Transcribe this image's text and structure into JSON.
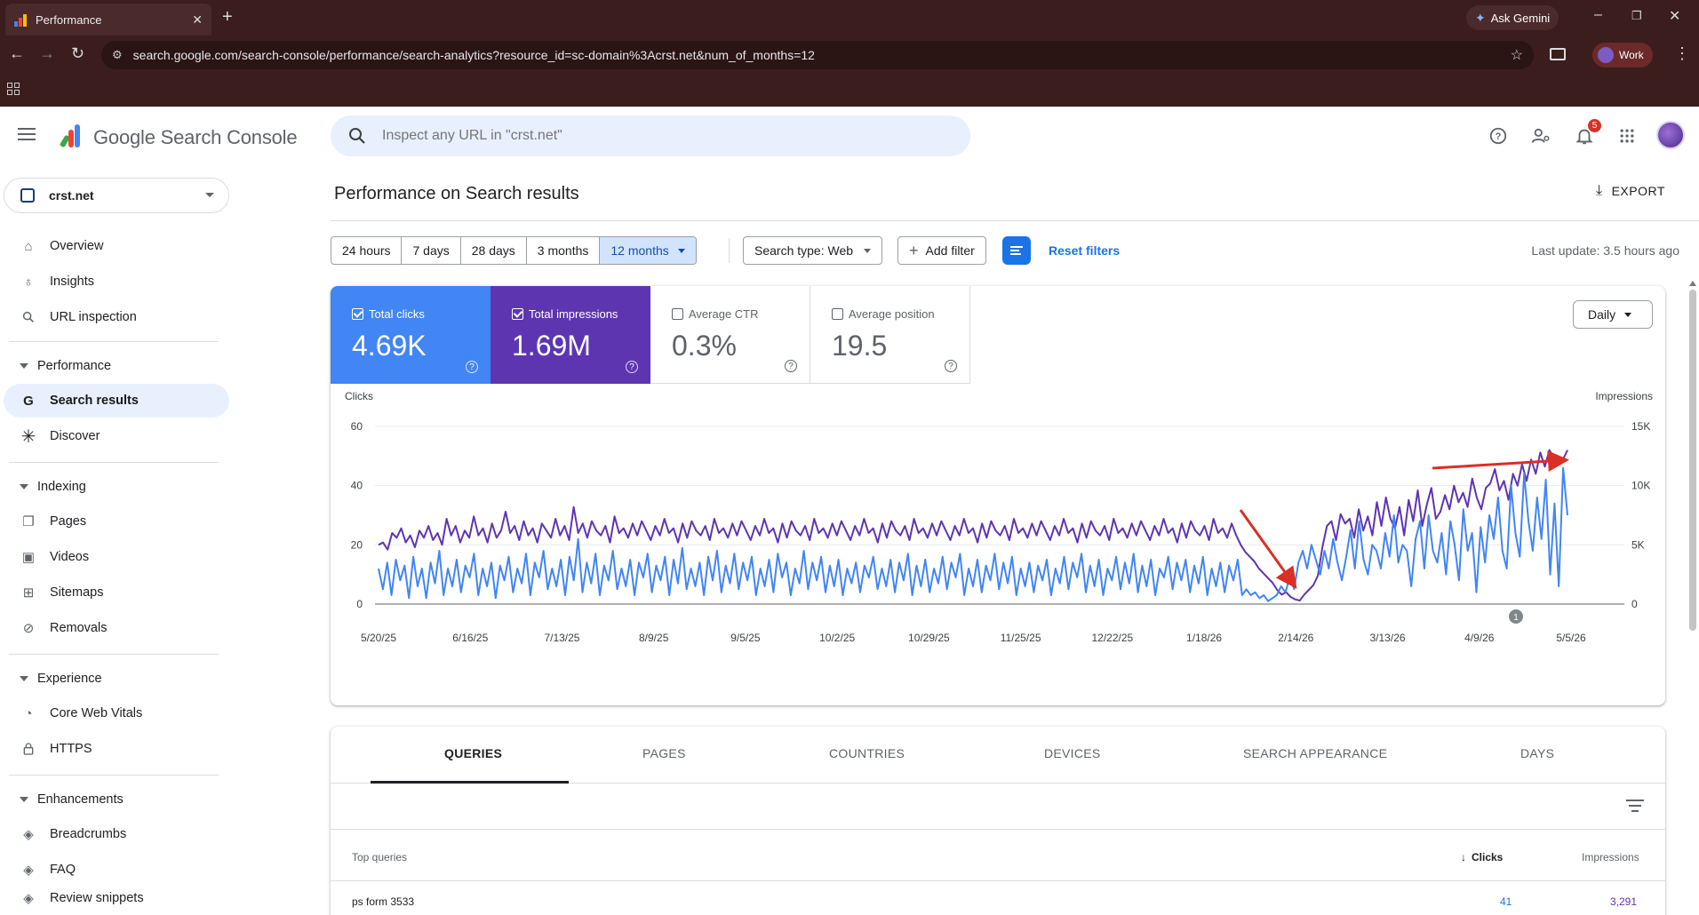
{
  "browser": {
    "tab_title": "Performance",
    "url": "search.google.com/search-console/performance/search-analytics?resource_id=sc-domain%3Acrst.net&num_of_months=12",
    "gemini_label": "Ask Gemini",
    "profile_label": "Work",
    "frame_color": "#3b1d1d"
  },
  "header": {
    "brand": "Google Search Console",
    "search_placeholder": "Inspect any URL in \"crst.net\"",
    "notification_count": "5"
  },
  "sidebar": {
    "property": "crst.net",
    "items": [
      {
        "label": "Overview",
        "icon": "home-icon"
      },
      {
        "label": "Insights",
        "icon": "lightbulb-icon"
      },
      {
        "label": "URL inspection",
        "icon": "search-icon"
      }
    ],
    "sections": [
      {
        "label": "Performance",
        "items": [
          {
            "label": "Search results",
            "icon": "google-g-icon",
            "active": true
          },
          {
            "label": "Discover",
            "icon": "asterisk-icon"
          }
        ]
      },
      {
        "label": "Indexing",
        "items": [
          {
            "label": "Pages",
            "icon": "pages-icon"
          },
          {
            "label": "Videos",
            "icon": "video-icon"
          },
          {
            "label": "Sitemaps",
            "icon": "sitemap-icon"
          },
          {
            "label": "Removals",
            "icon": "eye-off-icon"
          }
        ]
      },
      {
        "label": "Experience",
        "items": [
          {
            "label": "Core Web Vitals",
            "icon": "speedometer-icon"
          },
          {
            "label": "HTTPS",
            "icon": "lock-icon"
          }
        ]
      },
      {
        "label": "Enhancements",
        "items": [
          {
            "label": "Breadcrumbs",
            "icon": "layers-icon"
          },
          {
            "label": "FAQ",
            "icon": "layers-icon"
          },
          {
            "label": "Review snippets",
            "icon": "layers-icon"
          }
        ]
      }
    ]
  },
  "main": {
    "title": "Performance on Search results",
    "export_label": "EXPORT",
    "ranges": [
      "24 hours",
      "7 days",
      "28 days",
      "3 months",
      "12 months"
    ],
    "selected_range": "12 months",
    "search_type": "Search type: Web",
    "add_filter": "Add filter",
    "reset_filters": "Reset filters",
    "last_update": "Last update: 3.5 hours ago",
    "granularity": "Daily",
    "metrics": {
      "clicks": {
        "label": "Total clicks",
        "value": "4.69K",
        "checked": true,
        "color": "#4285f4"
      },
      "impressions": {
        "label": "Total impressions",
        "value": "1.69M",
        "checked": true,
        "color": "#5e35b1"
      },
      "ctr": {
        "label": "Average CTR",
        "value": "0.3%",
        "checked": false
      },
      "position": {
        "label": "Average position",
        "value": "19.5",
        "checked": false
      }
    }
  },
  "chart_data": {
    "type": "line",
    "left_axis_label": "Clicks",
    "right_axis_label": "Impressions",
    "left_ticks": [
      "0",
      "20",
      "40",
      "60"
    ],
    "right_ticks": [
      "0",
      "5K",
      "10K",
      "15K"
    ],
    "ylim_left": [
      0,
      60
    ],
    "ylim_right": [
      0,
      15000
    ],
    "x_tick_labels": [
      "5/20/25",
      "6/16/25",
      "7/13/25",
      "8/9/25",
      "9/5/25",
      "10/2/25",
      "10/29/25",
      "11/25/25",
      "12/22/25",
      "1/18/26",
      "2/14/26",
      "3/13/26",
      "4/9/26",
      "5/5/26"
    ],
    "annotation_marker": "1",
    "series": [
      {
        "name": "Clicks",
        "color": "#4285f4",
        "axis": "left",
        "values": [
          12,
          5,
          14,
          3,
          15,
          8,
          13,
          2,
          16,
          6,
          12,
          2,
          14,
          7,
          18,
          3,
          12,
          6,
          15,
          4,
          13,
          9,
          17,
          3,
          12,
          6,
          14,
          2,
          13,
          8,
          16,
          4,
          12,
          7,
          17,
          3,
          14,
          9,
          18,
          5,
          12,
          6,
          15,
          3,
          16,
          8,
          22,
          4,
          14,
          7,
          17,
          3,
          13,
          8,
          18,
          5,
          12,
          6,
          15,
          3,
          14,
          9,
          17,
          4,
          13,
          8,
          16,
          3,
          15,
          7,
          19,
          5,
          12,
          6,
          14,
          3,
          16,
          8,
          18,
          4,
          13,
          7,
          17,
          5,
          14,
          8,
          16,
          3,
          12,
          6,
          15,
          4,
          17,
          9,
          14,
          3,
          12,
          7,
          18,
          5,
          14,
          8,
          16,
          4,
          13,
          6,
          15,
          3,
          12,
          7,
          14,
          4,
          13,
          9,
          16,
          5,
          12,
          6,
          15,
          4,
          14,
          8,
          17,
          3,
          13,
          6,
          15,
          4,
          12,
          7,
          16,
          5,
          14,
          9,
          17,
          3,
          12,
          6,
          15,
          4,
          13,
          8,
          17,
          5,
          14,
          7,
          16,
          3,
          12,
          6,
          14,
          4,
          13,
          8,
          15,
          3,
          12,
          7,
          16,
          5,
          14,
          9,
          17,
          4,
          13,
          6,
          15,
          3,
          12,
          8,
          16,
          5,
          14,
          7,
          17,
          4,
          13,
          6,
          15,
          3,
          12,
          9,
          16,
          5,
          14,
          8,
          15,
          4,
          13,
          7,
          16,
          3,
          12,
          6,
          14,
          4,
          13,
          8,
          15,
          3,
          5,
          3,
          4,
          2,
          3,
          1,
          2,
          3,
          6,
          4,
          9,
          5,
          14,
          18,
          12,
          20,
          15,
          10,
          18,
          12,
          22,
          14,
          8,
          16,
          25,
          12,
          28,
          15,
          10,
          20,
          18,
          12,
          24,
          16,
          30,
          14,
          20,
          18,
          6,
          22,
          28,
          12,
          30,
          18,
          14,
          24,
          10,
          28,
          20,
          8,
          32,
          18,
          24,
          4,
          26,
          14,
          30,
          22,
          36,
          18,
          12,
          40,
          24,
          16,
          44,
          28,
          18,
          36,
          22,
          42,
          10,
          34,
          6,
          46,
          30
        ],
        "approx": true
      },
      {
        "name": "Impressions",
        "color": "#5e35b1",
        "axis": "right",
        "values": [
          5000,
          5200,
          4600,
          6000,
          5600,
          6400,
          5200,
          5800,
          4800,
          6200,
          5600,
          6600,
          5400,
          6000,
          5000,
          7200,
          5800,
          6600,
          5200,
          6200,
          5600,
          7400,
          5800,
          6400,
          5200,
          6800,
          5600,
          6200,
          7800,
          6000,
          6600,
          5400,
          7000,
          5800,
          6400,
          5200,
          6800,
          6200,
          5600,
          7200,
          5800,
          6600,
          5400,
          8200,
          6000,
          6800,
          5600,
          7000,
          6200,
          5800,
          6600,
          5200,
          7400,
          6000,
          6400,
          5600,
          6800,
          5800,
          7000,
          6200,
          5400,
          6600,
          5800,
          7200,
          6000,
          6400,
          5200,
          6800,
          5600,
          7000,
          6200,
          5800,
          6600,
          5400,
          7200,
          6000,
          6400,
          5600,
          6800,
          5800,
          7000,
          6200,
          5400,
          6600,
          5800,
          7200,
          6000,
          6400,
          5200,
          6800,
          5600,
          7000,
          6200,
          5800,
          6600,
          5400,
          7200,
          6000,
          6400,
          5600,
          6800,
          5800,
          7000,
          6200,
          5400,
          6600,
          5800,
          7200,
          6000,
          6400,
          5200,
          6800,
          5600,
          7000,
          6200,
          5800,
          6600,
          5400,
          7200,
          6000,
          6400,
          5600,
          6800,
          5800,
          7000,
          6200,
          5400,
          6600,
          5800,
          7200,
          6000,
          6400,
          5200,
          6800,
          5600,
          7000,
          6200,
          5800,
          6600,
          5400,
          7200,
          6000,
          6400,
          5600,
          6800,
          5800,
          7000,
          6200,
          5400,
          6600,
          5800,
          7200,
          6000,
          6400,
          5200,
          6800,
          5600,
          7000,
          6200,
          5800,
          6600,
          5400,
          7200,
          6000,
          6400,
          5600,
          6800,
          5800,
          7000,
          6200,
          5400,
          6600,
          5800,
          7200,
          6000,
          6400,
          5200,
          6800,
          5600,
          7000,
          6200,
          5800,
          6600,
          5400,
          7200,
          6000,
          6400,
          5600,
          6800,
          5800,
          5000,
          4400,
          4000,
          3600,
          3000,
          2600,
          2200,
          1800,
          1200,
          800,
          1000,
          600,
          400,
          300,
          800,
          1200,
          1600,
          2400,
          4800,
          6600,
          7000,
          5400,
          7600,
          6800,
          7200,
          5600,
          8000,
          6200,
          7400,
          5800,
          8600,
          6600,
          9000,
          7200,
          6400,
          8200,
          5800,
          8800,
          7000,
          9600,
          6600,
          8400,
          9800,
          7200,
          7800,
          9200,
          8000,
          10000,
          8600,
          9400,
          8200,
          10600,
          9000,
          8000,
          9800,
          10200,
          11400,
          9600,
          10400,
          8800,
          11000,
          10000,
          11800,
          10400,
          12200,
          11000,
          12800,
          11600,
          13000,
          12400,
          11800,
          12200,
          13000
        ]
      }
    ]
  },
  "table": {
    "tabs": [
      "QUERIES",
      "PAGES",
      "COUNTRIES",
      "DEVICES",
      "SEARCH APPEARANCE",
      "DAYS"
    ],
    "active_tab": "QUERIES",
    "columns": {
      "query": "Top queries",
      "clicks": "Clicks",
      "impressions": "Impressions"
    },
    "rows": [
      {
        "query": "ps form 3533",
        "clicks": "41",
        "impressions": "3,291"
      }
    ]
  }
}
